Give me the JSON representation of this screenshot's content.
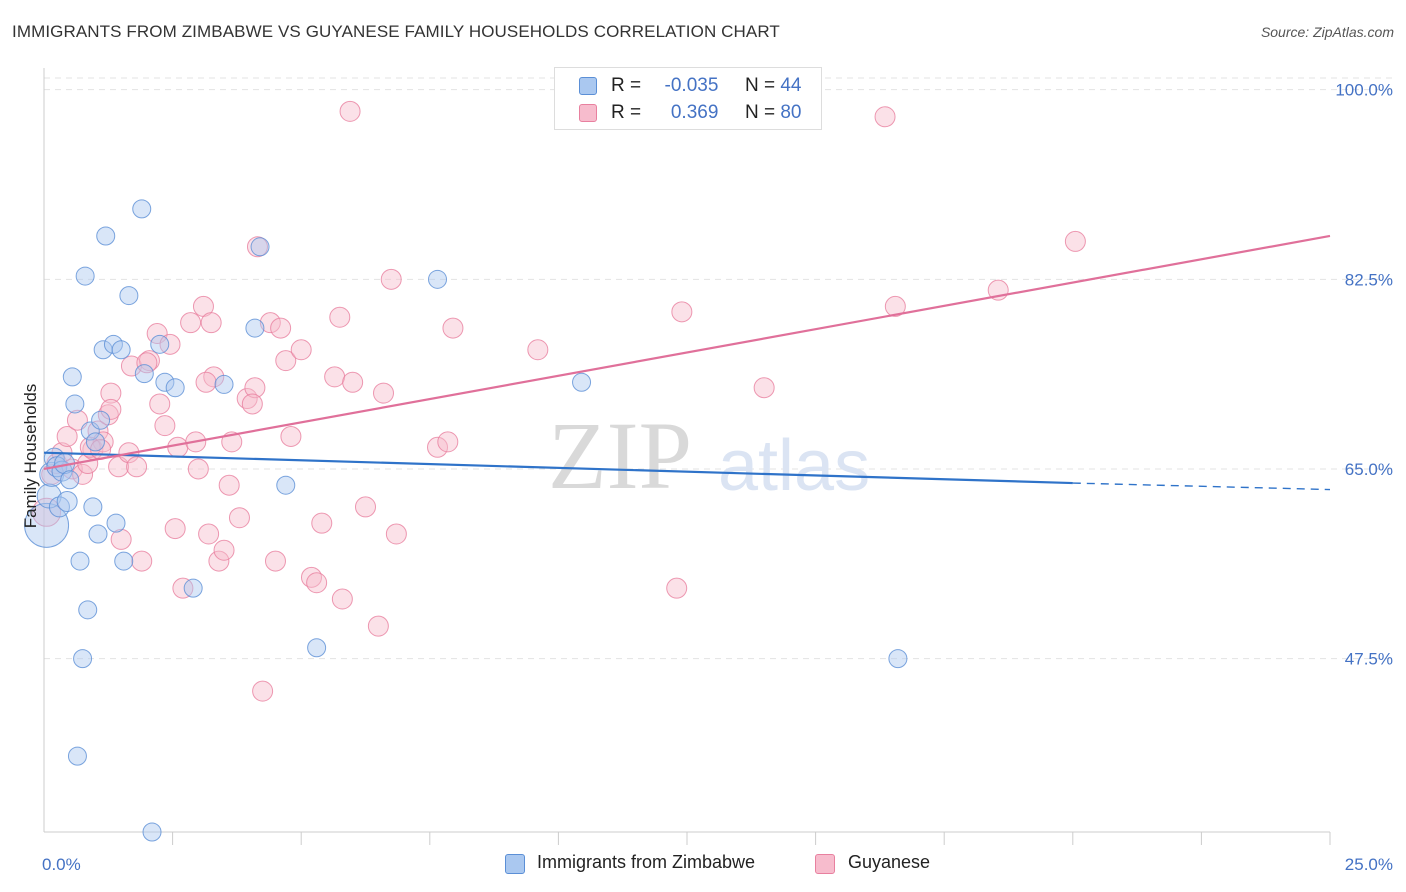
{
  "header": {
    "title": "IMMIGRANTS FROM ZIMBABWE VS GUYANESE FAMILY HOUSEHOLDS CORRELATION CHART",
    "source": "Source: ZipAtlas.com"
  },
  "watermark": {
    "zip": "ZIP",
    "atlas": "atlas"
  },
  "legend": {
    "rows": [
      {
        "r_label": "R =",
        "r_value": "-0.035",
        "n_label": "N =",
        "n_value": "44"
      },
      {
        "r_label": "R =",
        "r_value": "0.369",
        "n_label": "N =",
        "n_value": "80"
      }
    ]
  },
  "bottom_legend": {
    "zimbabwe": "Immigrants from Zimbabwe",
    "guyanese": "Guyanese"
  },
  "colors": {
    "blue_fill": "#aac8f0",
    "blue_stroke": "#5b8fd6",
    "blue_line": "#2f73c9",
    "pink_fill": "#f7bccd",
    "pink_stroke": "#e8809f",
    "pink_line": "#e0709a",
    "grid": "#e3e3e3",
    "axis_text": "#4472c4"
  },
  "chart_data": {
    "type": "scatter",
    "title": "IMMIGRANTS FROM ZIMBABWE VS GUYANESE FAMILY HOUSEHOLDS CORRELATION CHART",
    "xlabel": "",
    "ylabel": "Family Households",
    "xlim": [
      0,
      25
    ],
    "ylim": [
      31.5,
      102
    ],
    "x_tick_labels": [
      "0.0%",
      "25.0%"
    ],
    "y_ticks": [
      47.5,
      65.0,
      82.5,
      100.0
    ],
    "y_tick_labels": [
      "47.5%",
      "65.0%",
      "82.5%",
      "100.0%"
    ],
    "grid": true,
    "series": [
      {
        "name": "Immigrants from Zimbabwe",
        "color": "blue",
        "points": [
          [
            0.05,
            59.8,
            22
          ],
          [
            0.1,
            62.5,
            12
          ],
          [
            0.15,
            64.5,
            12
          ],
          [
            0.2,
            66.0,
            10
          ],
          [
            0.25,
            65.2,
            10
          ],
          [
            0.3,
            61.5,
            10
          ],
          [
            0.35,
            64.8,
            10
          ],
          [
            0.4,
            65.5,
            10
          ],
          [
            0.45,
            62.0,
            10
          ],
          [
            0.55,
            73.5,
            9
          ],
          [
            0.6,
            71.0,
            9
          ],
          [
            0.65,
            38.5,
            9
          ],
          [
            0.7,
            56.5,
            9
          ],
          [
            0.75,
            47.5,
            9
          ],
          [
            0.8,
            82.8,
            9
          ],
          [
            0.85,
            52.0,
            9
          ],
          [
            0.9,
            68.5,
            9
          ],
          [
            0.95,
            61.5,
            9
          ],
          [
            1.05,
            59.0,
            9
          ],
          [
            1.1,
            69.5,
            9
          ],
          [
            1.15,
            76.0,
            9
          ],
          [
            1.2,
            86.5,
            9
          ],
          [
            1.4,
            60.0,
            9
          ],
          [
            1.35,
            76.5,
            9
          ],
          [
            1.5,
            76.0,
            9
          ],
          [
            1.55,
            56.5,
            9
          ],
          [
            1.65,
            81.0,
            9
          ],
          [
            1.9,
            89.0,
            9
          ],
          [
            1.95,
            73.8,
            9
          ],
          [
            2.1,
            31.5,
            9
          ],
          [
            2.25,
            76.5,
            9
          ],
          [
            2.35,
            73.0,
            9
          ],
          [
            2.55,
            72.5,
            9
          ],
          [
            2.9,
            54.0,
            9
          ],
          [
            3.5,
            72.8,
            9
          ],
          [
            4.1,
            78.0,
            9
          ],
          [
            4.2,
            85.5,
            9
          ],
          [
            4.7,
            63.5,
            9
          ],
          [
            5.3,
            48.5,
            9
          ],
          [
            7.65,
            82.5,
            9
          ],
          [
            10.45,
            73.0,
            9
          ],
          [
            16.6,
            47.5,
            9
          ],
          [
            1.0,
            67.5,
            9
          ],
          [
            0.5,
            64.0,
            9
          ]
        ]
      },
      {
        "name": "Guyanese",
        "color": "pink",
        "points": [
          [
            0.05,
            61.0,
            14
          ],
          [
            0.15,
            64.5,
            10
          ],
          [
            0.25,
            65.5,
            10
          ],
          [
            0.35,
            66.5,
            10
          ],
          [
            0.45,
            68.0,
            10
          ],
          [
            0.55,
            65.0,
            10
          ],
          [
            0.65,
            69.5,
            10
          ],
          [
            0.75,
            64.5,
            10
          ],
          [
            0.85,
            65.5,
            10
          ],
          [
            0.95,
            66.8,
            10
          ],
          [
            1.05,
            68.5,
            10
          ],
          [
            1.15,
            67.5,
            10
          ],
          [
            1.25,
            70.0,
            10
          ],
          [
            1.3,
            72.0,
            10
          ],
          [
            1.45,
            65.2,
            10
          ],
          [
            1.5,
            58.5,
            10
          ],
          [
            1.65,
            66.5,
            10
          ],
          [
            1.7,
            74.5,
            10
          ],
          [
            1.8,
            65.2,
            10
          ],
          [
            1.9,
            56.5,
            10
          ],
          [
            2.05,
            75.0,
            10
          ],
          [
            2.2,
            77.5,
            10
          ],
          [
            2.25,
            71.0,
            10
          ],
          [
            2.35,
            69.0,
            10
          ],
          [
            2.45,
            76.5,
            10
          ],
          [
            2.55,
            59.5,
            10
          ],
          [
            2.6,
            67.0,
            10
          ],
          [
            2.7,
            54.0,
            10
          ],
          [
            2.85,
            78.5,
            10
          ],
          [
            2.95,
            67.5,
            10
          ],
          [
            3.0,
            65.0,
            10
          ],
          [
            3.1,
            80.0,
            10
          ],
          [
            3.2,
            59.0,
            10
          ],
          [
            3.3,
            73.5,
            10
          ],
          [
            3.4,
            56.5,
            10
          ],
          [
            3.5,
            57.5,
            10
          ],
          [
            3.6,
            63.5,
            10
          ],
          [
            3.65,
            67.5,
            10
          ],
          [
            3.8,
            60.5,
            10
          ],
          [
            3.95,
            71.5,
            10
          ],
          [
            4.1,
            72.5,
            10
          ],
          [
            4.15,
            85.5,
            10
          ],
          [
            4.25,
            44.5,
            10
          ],
          [
            4.4,
            78.5,
            10
          ],
          [
            4.5,
            56.5,
            10
          ],
          [
            4.6,
            78.0,
            10
          ],
          [
            4.7,
            75.0,
            10
          ],
          [
            4.8,
            68.0,
            10
          ],
          [
            5.0,
            76.0,
            10
          ],
          [
            5.2,
            55.0,
            10
          ],
          [
            5.3,
            54.5,
            10
          ],
          [
            5.4,
            60.0,
            10
          ],
          [
            5.65,
            73.5,
            10
          ],
          [
            5.75,
            79.0,
            10
          ],
          [
            5.8,
            53.0,
            10
          ],
          [
            5.95,
            98.0,
            10
          ],
          [
            6.0,
            73.0,
            10
          ],
          [
            6.25,
            61.5,
            10
          ],
          [
            6.5,
            50.5,
            10
          ],
          [
            6.6,
            72.0,
            10
          ],
          [
            6.75,
            82.5,
            10
          ],
          [
            6.85,
            59.0,
            10
          ],
          [
            7.65,
            67.0,
            10
          ],
          [
            7.85,
            67.5,
            10
          ],
          [
            7.95,
            78.0,
            10
          ],
          [
            9.6,
            76.0,
            10
          ],
          [
            12.3,
            54.0,
            10
          ],
          [
            12.4,
            79.5,
            10
          ],
          [
            14.0,
            72.5,
            10
          ],
          [
            16.35,
            97.5,
            10
          ],
          [
            16.55,
            80.0,
            10
          ],
          [
            18.55,
            81.5,
            10
          ],
          [
            20.05,
            86.0,
            10
          ],
          [
            1.3,
            70.5,
            10
          ],
          [
            2.0,
            74.8,
            10
          ],
          [
            0.9,
            67.0,
            10
          ],
          [
            3.25,
            78.5,
            10
          ],
          [
            1.1,
            66.8,
            10
          ],
          [
            3.15,
            73.0,
            10
          ],
          [
            4.05,
            71.0,
            10
          ]
        ]
      }
    ],
    "trend_lines": [
      {
        "series": "Immigrants from Zimbabwe",
        "x_start": 0,
        "y_start": 66.5,
        "x_solid_end": 20.0,
        "y_solid_end": 63.7,
        "x_end": 25,
        "y_end": 63.1
      },
      {
        "series": "Guyanese",
        "x_start": 0,
        "y_start": 65.0,
        "x_end": 25,
        "y_end": 86.5
      }
    ]
  }
}
